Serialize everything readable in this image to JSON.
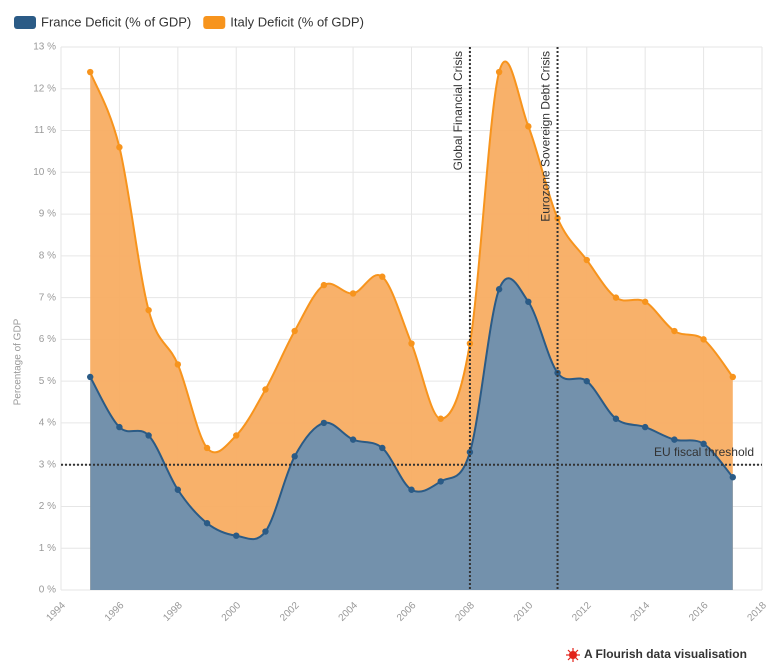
{
  "chart_data": {
    "type": "area",
    "x": [
      1995,
      1996,
      1997,
      1998,
      1999,
      2000,
      2001,
      2002,
      2003,
      2004,
      2005,
      2006,
      2007,
      2008,
      2009,
      2010,
      2011,
      2012,
      2013,
      2014,
      2015,
      2016,
      2017
    ],
    "series": [
      {
        "name": "France Deficit (% of GDP)",
        "color": "#2b5b86",
        "fill": "#6b8fb0",
        "values": [
          5.1,
          3.9,
          3.7,
          2.4,
          1.6,
          1.3,
          1.4,
          3.2,
          4.0,
          3.6,
          3.4,
          2.4,
          2.6,
          3.3,
          7.2,
          6.9,
          5.2,
          5.0,
          4.1,
          3.9,
          3.6,
          3.5,
          2.7
        ]
      },
      {
        "name": "Italy Deficit (% of GDP)",
        "color": "#f7941d",
        "fill": "#f8ad62",
        "values": [
          12.4,
          10.6,
          6.7,
          5.4,
          3.4,
          3.7,
          4.8,
          6.2,
          7.3,
          7.1,
          7.5,
          5.9,
          4.1,
          5.9,
          12.4,
          11.1,
          8.9,
          7.9,
          7.0,
          6.9,
          6.2,
          6.0,
          5.1
        ]
      }
    ],
    "ylabel": "Percentage of GDP",
    "xlim": [
      1994,
      2018
    ],
    "xticks": [
      1994,
      1996,
      1998,
      2000,
      2002,
      2004,
      2006,
      2008,
      2010,
      2012,
      2014,
      2016,
      2018
    ],
    "ylim": [
      0,
      13
    ],
    "yticks": [
      {
        "value": 0,
        "label": "0 %"
      },
      {
        "value": 1,
        "label": "1 %"
      },
      {
        "value": 2,
        "label": "2 %"
      },
      {
        "value": 3,
        "label": "3 %"
      },
      {
        "value": 4,
        "label": "4 %"
      },
      {
        "value": 5,
        "label": "5 %"
      },
      {
        "value": 6,
        "label": "6 %"
      },
      {
        "value": 7,
        "label": "7 %"
      },
      {
        "value": 8,
        "label": "8 %"
      },
      {
        "value": 9,
        "label": "9 %"
      },
      {
        "value": 10,
        "label": "10 %"
      },
      {
        "value": 11,
        "label": "11 %"
      },
      {
        "value": 12,
        "label": "12 %"
      },
      {
        "value": 13,
        "label": "13 %"
      }
    ],
    "grid": true,
    "legend": "top-left",
    "annotations": [
      {
        "text": "Global Financial Crisis",
        "x": 2008
      },
      {
        "text": "Eurozone Sovereign Debt Crisis",
        "x": 2011
      }
    ],
    "threshold": {
      "text": "EU fiscal threshold",
      "y": 3
    },
    "footer": "A Flourish data visualisation"
  }
}
